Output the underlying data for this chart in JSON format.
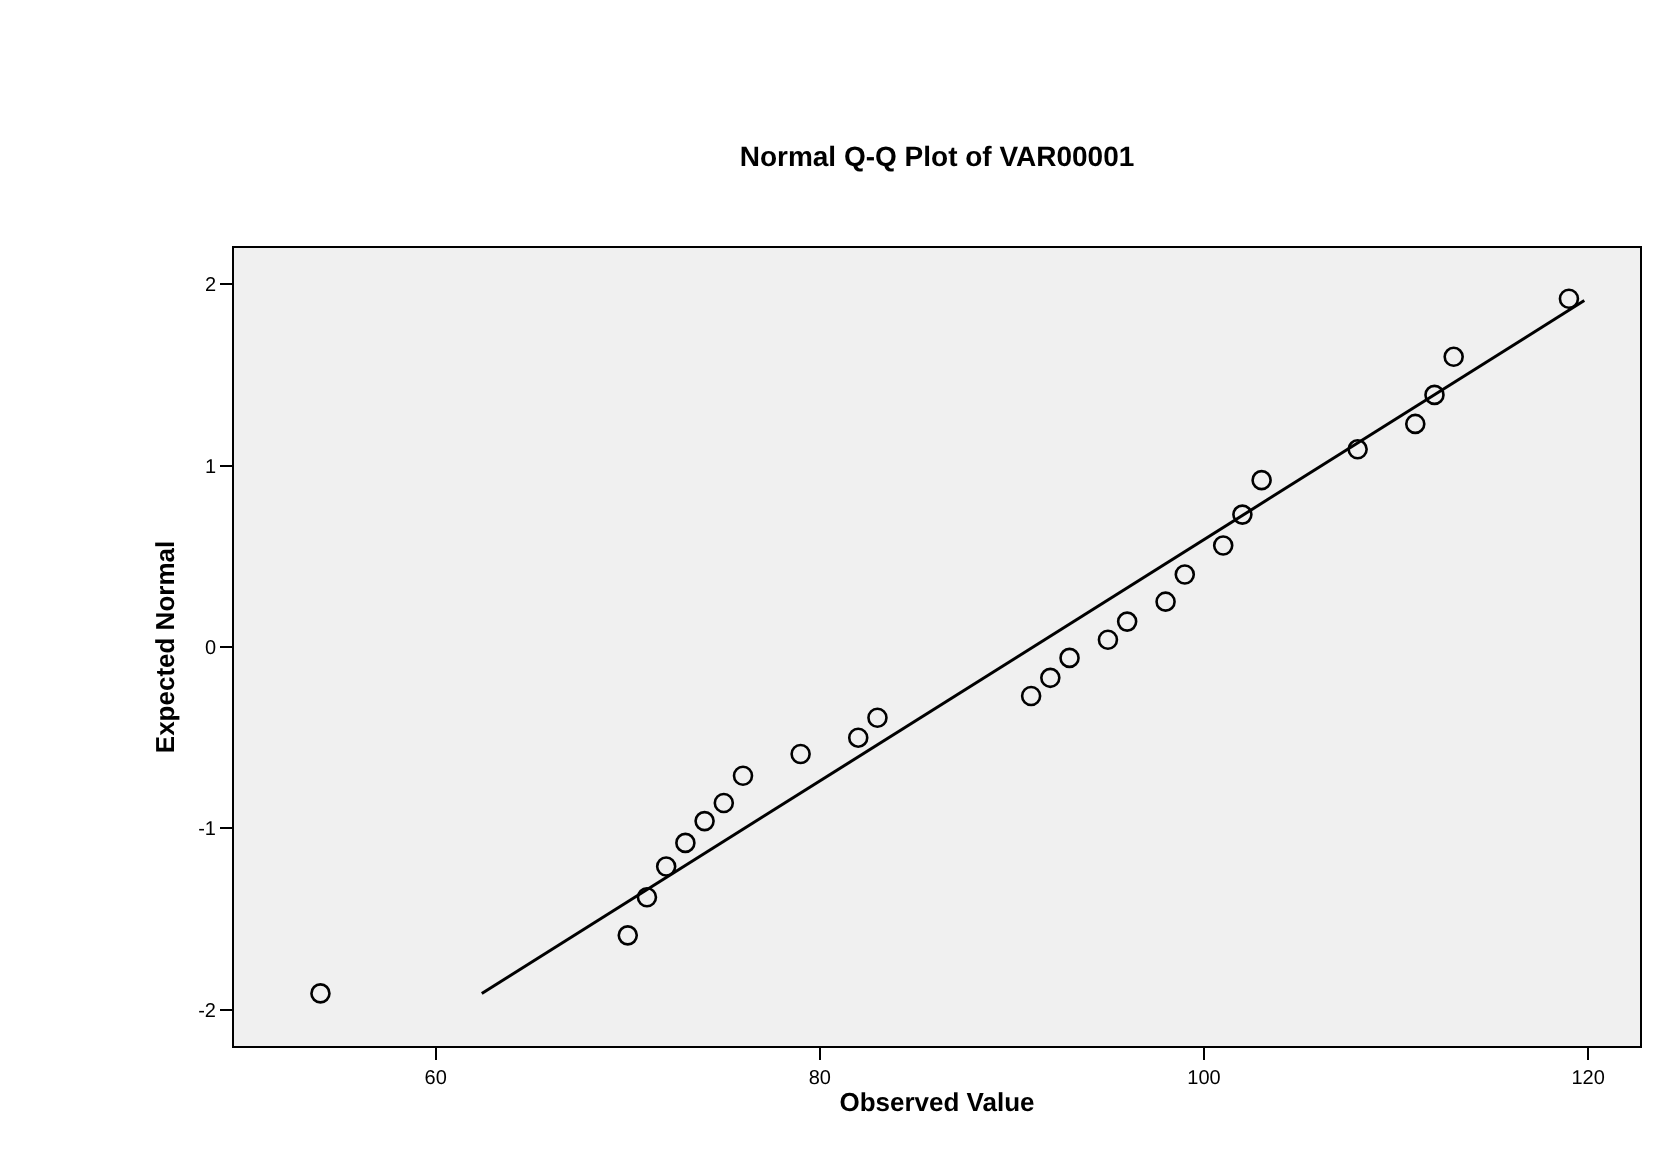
{
  "chart_data": {
    "type": "scatter",
    "title": "Normal Q-Q Plot of VAR00001",
    "xlabel": "Observed Value",
    "ylabel": "Expected Normal",
    "xlim": [
      49.5,
      122.7
    ],
    "xticks": [
      60,
      80,
      100,
      120
    ],
    "ylim": [
      -2.2,
      2.2
    ],
    "yticks": [
      -2,
      -1,
      0,
      1,
      2
    ],
    "grid": false,
    "series": [
      {
        "color": "#000000",
        "marker": "circle",
        "x": [
          54,
          70,
          71,
          72,
          73,
          74,
          75,
          76,
          79,
          82,
          83,
          91,
          92,
          93,
          95,
          96,
          98,
          99,
          101,
          102,
          103,
          108,
          111,
          112,
          113,
          119
        ],
        "values": [
          -1.91,
          -1.59,
          -1.38,
          -1.21,
          -1.08,
          -0.96,
          -0.86,
          -0.71,
          -0.59,
          -0.5,
          -0.39,
          -0.27,
          -0.17,
          -0.06,
          0.04,
          0.14,
          0.25,
          0.4,
          0.56,
          0.73,
          0.92,
          1.09,
          1.23,
          1.39,
          1.6,
          1.92
        ]
      },
      {
        "type": "line",
        "color": "#000000",
        "marker": "none",
        "line_style": "solid",
        "x": [
          62.4,
          119.8
        ],
        "values": [
          -1.91,
          1.91
        ]
      }
    ]
  }
}
